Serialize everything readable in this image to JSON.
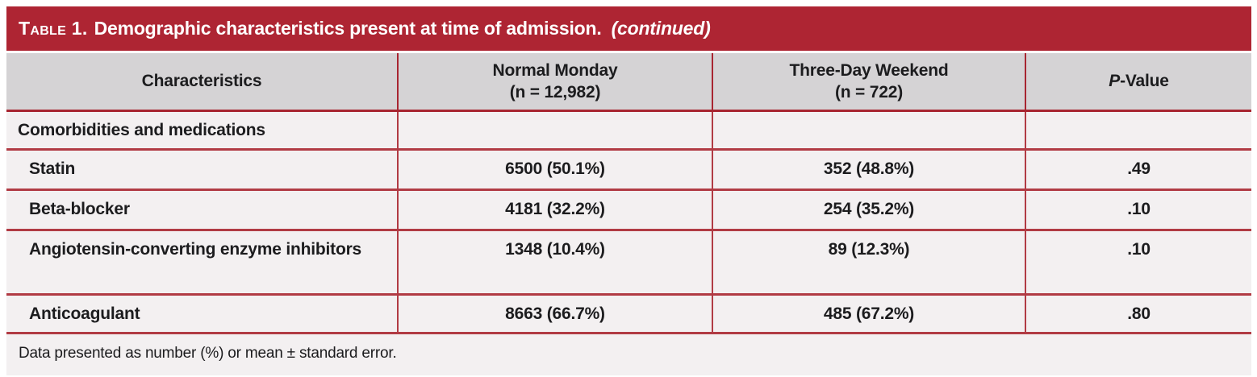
{
  "table": {
    "title": {
      "label": "Table 1.",
      "text": "Demographic characteristics present at time of admission.",
      "continued": "(continued)"
    },
    "columns": [
      {
        "title": "Characteristics",
        "subtitle": ""
      },
      {
        "title": "Normal Monday",
        "subtitle": "(n = 12,982)"
      },
      {
        "title": "Three-Day Weekend",
        "subtitle": "(n = 722)"
      },
      {
        "title_italic": "P",
        "title_rest": "-Value"
      }
    ],
    "section_header": "Comorbidities and medications",
    "rows": [
      {
        "label": "Statin",
        "monday": "6500 (50.1%)",
        "weekend": "352 (48.8%)",
        "p": ".49"
      },
      {
        "label": "Beta-blocker",
        "monday": "4181 (32.2%)",
        "weekend": "254 (35.2%)",
        "p": ".10"
      },
      {
        "label": "Angiotensin-converting enzyme inhibitors",
        "monday": "1348 (10.4%)",
        "weekend": "89 (12.3%)",
        "p": ".10"
      },
      {
        "label": "Anticoagulant",
        "monday": "8663 (66.7%)",
        "weekend": "485 (67.2%)",
        "p": ".80"
      }
    ],
    "footnote": "Data presented as number (%) or mean ± standard error."
  },
  "colors": {
    "accent_red": "#ae2533",
    "divider_red": "#b13b44",
    "header_gray": "#d5d3d5",
    "body_bg": "#f3f0f1"
  }
}
